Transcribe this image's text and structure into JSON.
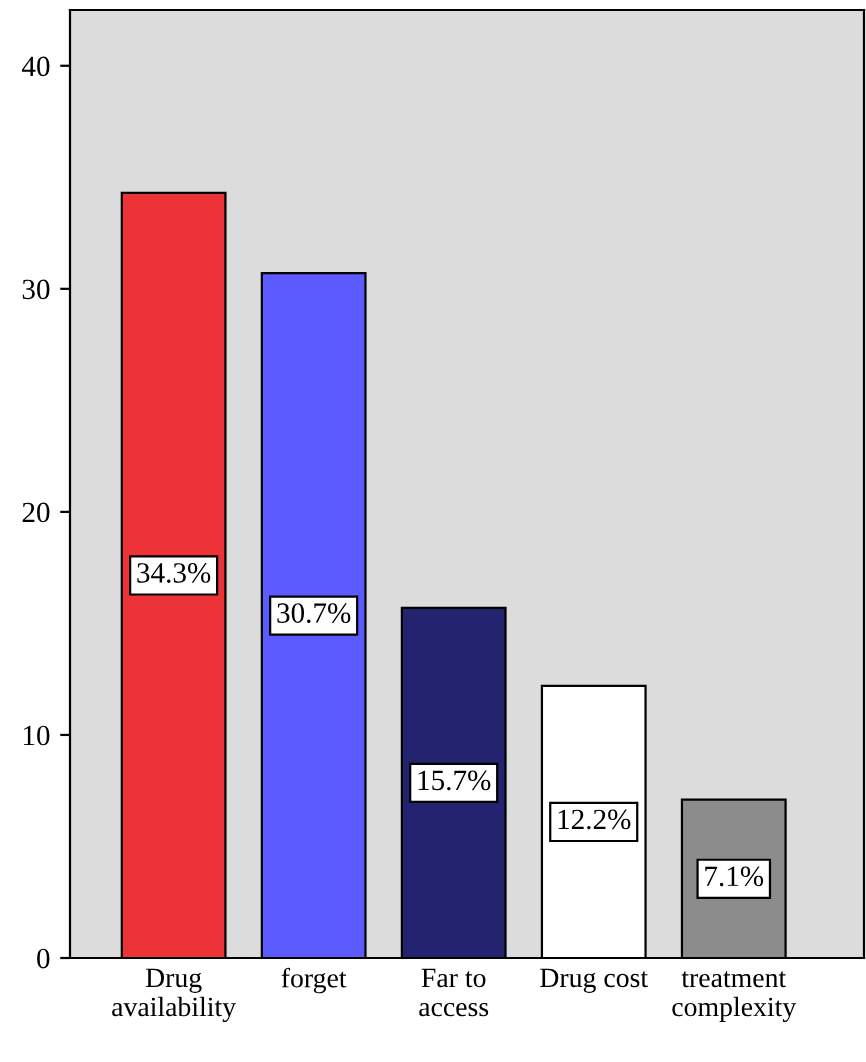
{
  "chart_data": {
    "type": "bar",
    "categories": [
      "Drug\navailability",
      "forget",
      "Far to\naccess",
      "Drug cost",
      "treatment\ncomplexity"
    ],
    "values": [
      34.3,
      30.7,
      15.7,
      12.2,
      7.1
    ],
    "colors": [
      "#ee3338",
      "#5b5bff",
      "#232370",
      "#ffffff",
      "#8c8c8c"
    ],
    "value_labels": [
      "34.3%",
      "30.7%",
      "15.7%",
      "12.2%",
      "7.1%"
    ],
    "ylim": [
      0,
      42.5
    ],
    "yticks": [
      0,
      10,
      20,
      30,
      40
    ],
    "grid": false,
    "legend": false
  }
}
